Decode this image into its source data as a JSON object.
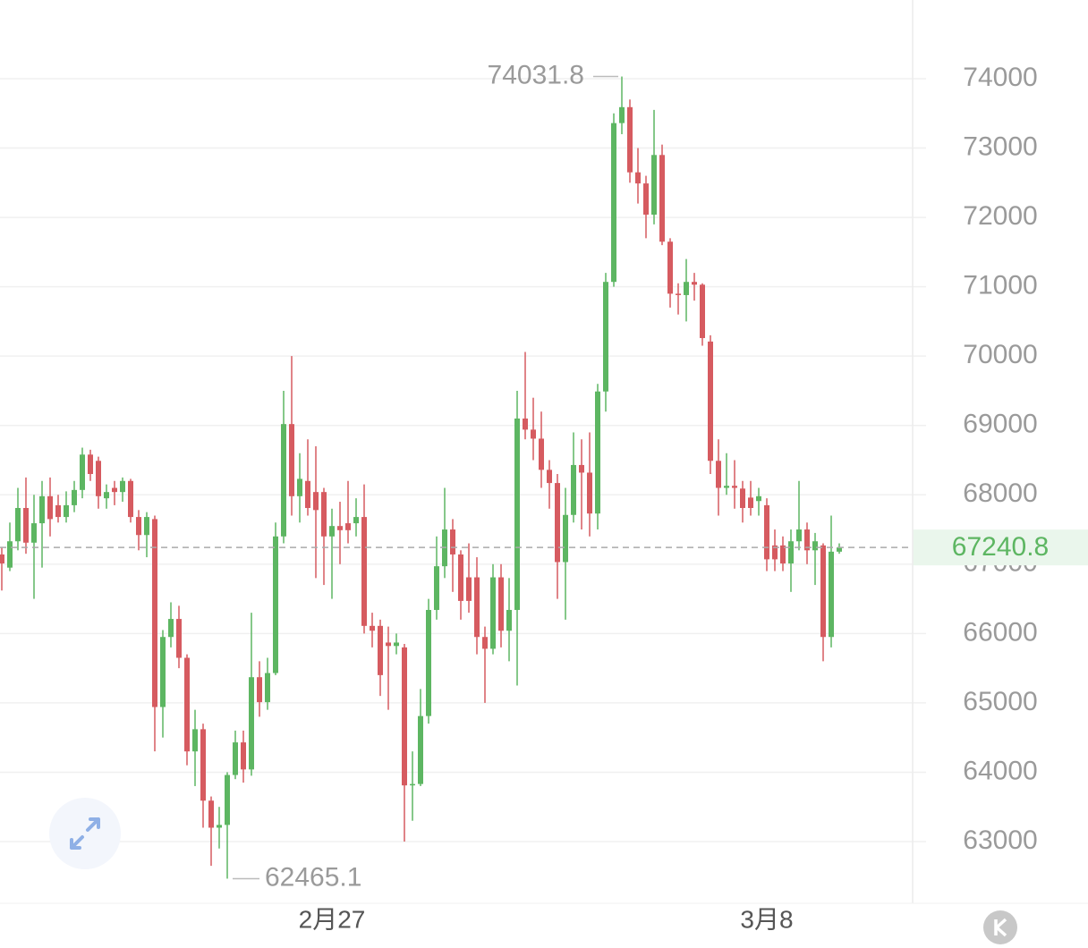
{
  "chart_data": {
    "type": "candlestick",
    "categories": [
      null,
      null,
      null,
      null,
      null,
      null,
      null,
      null,
      null,
      null,
      null,
      null,
      null,
      null,
      null,
      null,
      null,
      null,
      null,
      null,
      null,
      null,
      null,
      null,
      null,
      null,
      null,
      null,
      null,
      null,
      null,
      null,
      null,
      null,
      null,
      null,
      null,
      null,
      null,
      null,
      null,
      "2月27",
      null,
      null,
      null,
      null,
      null,
      null,
      null,
      null,
      null,
      null,
      null,
      null,
      null,
      null,
      null,
      null,
      null,
      null,
      null,
      null,
      null,
      null,
      null,
      null,
      null,
      null,
      null,
      null,
      null,
      null,
      null,
      null,
      null,
      null,
      null,
      null,
      null,
      null,
      null,
      null,
      null,
      null,
      null,
      null,
      null,
      null,
      null,
      null,
      null,
      null,
      null,
      null,
      null,
      "3月8",
      null,
      null,
      null,
      null,
      null,
      null,
      null,
      null,
      null
    ],
    "open": [
      67140,
      66950,
      67330,
      67810,
      67310,
      67590,
      67980,
      67850,
      67680,
      67850,
      68070,
      68580,
      68490,
      67950,
      68100,
      68040,
      68200,
      67680,
      67420,
      67650,
      64940,
      65950,
      66210,
      65650,
      64300,
      64620,
      63590,
      63200,
      63240,
      63960,
      64430,
      64040,
      65370,
      65010,
      65430,
      67400,
      69020,
      67980,
      68200,
      68040,
      68040,
      67400,
      67550,
      67590,
      67590,
      67680,
      66110,
      66110,
      65870,
      65820,
      65800,
      63810,
      63830,
      64810,
      66340,
      66970,
      67500,
      67140,
      66810,
      66810,
      65950,
      65780,
      66810,
      66040,
      66340,
      69100,
      68940,
      68810,
      68360,
      68170,
      67030,
      67710,
      68430,
      68320,
      67730,
      69490,
      71070,
      73360,
      73590,
      72650,
      72490,
      72040,
      72900,
      71650,
      70900,
      70880,
      71070,
      71030,
      70210,
      68490,
      68100,
      68130,
      68090,
      67960,
      67910,
      67850,
      67270,
      67270,
      67010,
      67330,
      67500,
      67200,
      67270,
      65950,
      67180
    ],
    "high": [
      67250,
      67600,
      68100,
      68250,
      68000,
      68200,
      68250,
      68000,
      68050,
      68200,
      68680,
      68650,
      68550,
      68150,
      68200,
      68250,
      68230,
      67780,
      67750,
      67700,
      66050,
      66450,
      66400,
      65700,
      64900,
      64700,
      63650,
      63500,
      64000,
      64600,
      64600,
      66300,
      65600,
      65650,
      67600,
      69500,
      70000,
      68600,
      68800,
      68700,
      68100,
      67800,
      67900,
      68200,
      67950,
      68150,
      66300,
      66200,
      66100,
      66000,
      65850,
      64300,
      65200,
      66500,
      67400,
      68100,
      67650,
      67200,
      67300,
      67100,
      66100,
      67000,
      67000,
      66800,
      69500,
      70060,
      69400,
      69200,
      68500,
      68300,
      68100,
      68900,
      68800,
      68900,
      69600,
      71200,
      73500,
      74031.8,
      73700,
      73000,
      72600,
      73550,
      73050,
      71700,
      71050,
      71400,
      71200,
      71050,
      70300,
      68800,
      68600,
      68500,
      68200,
      68200,
      68100,
      67950,
      67500,
      67400,
      67500,
      68200,
      67600,
      67450,
      67300,
      67700,
      67300
    ],
    "low": [
      66620,
      66900,
      67200,
      67150,
      66500,
      66950,
      67400,
      67600,
      67600,
      67750,
      67950,
      68200,
      67800,
      67800,
      67850,
      67900,
      67600,
      67200,
      67100,
      64300,
      64500,
      65800,
      65500,
      64100,
      63800,
      63200,
      62650,
      62900,
      62465.1,
      63900,
      63850,
      63950,
      64800,
      64900,
      65400,
      67300,
      67700,
      67600,
      67700,
      66800,
      66700,
      66500,
      67000,
      67300,
      67400,
      66000,
      65800,
      65100,
      64900,
      65700,
      63000,
      63300,
      63800,
      64700,
      66200,
      66800,
      66600,
      66200,
      66300,
      65700,
      65000,
      65700,
      65800,
      65600,
      65250,
      68800,
      68500,
      68100,
      67800,
      66500,
      66200,
      67600,
      67500,
      67400,
      67500,
      69200,
      71000,
      73200,
      72500,
      72200,
      71700,
      71900,
      71600,
      70700,
      70600,
      70500,
      70800,
      70150,
      68300,
      67700,
      68000,
      67800,
      67600,
      67700,
      67700,
      66900,
      66900,
      66900,
      66600,
      67200,
      67000,
      66700,
      65600,
      65800,
      67150
    ],
    "close": [
      67010,
      67330,
      67810,
      67310,
      67590,
      67980,
      67650,
      67680,
      67850,
      68070,
      68580,
      68300,
      67980,
      68040,
      68040,
      68200,
      67680,
      67420,
      67680,
      64940,
      65950,
      66210,
      65650,
      64300,
      64620,
      63590,
      63200,
      63240,
      63960,
      64430,
      64040,
      65370,
      65010,
      65430,
      67400,
      69020,
      67980,
      68230,
      67810,
      67780,
      67400,
      67550,
      67490,
      67490,
      67680,
      66110,
      66040,
      65400,
      65820,
      65870,
      63810,
      63830,
      64810,
      66340,
      66970,
      67500,
      67140,
      66470,
      66470,
      65950,
      65780,
      66810,
      66040,
      66340,
      69100,
      68940,
      68810,
      68360,
      68170,
      67030,
      67710,
      68430,
      68320,
      67730,
      69490,
      71070,
      73360,
      73590,
      72650,
      72490,
      72040,
      72900,
      71650,
      70900,
      70880,
      71070,
      71030,
      70260,
      68490,
      68100,
      68130,
      68100,
      67810,
      67810,
      67980,
      67070,
      67070,
      67010,
      67330,
      67500,
      67200,
      67330,
      65950,
      67180,
      67240.8
    ],
    "up_color": "#5db662",
    "down_color": "#d65b60",
    "ylim": [
      62110,
      75135
    ],
    "yticks": [
      63000,
      64000,
      65000,
      66000,
      67000,
      68000,
      69000,
      70000,
      71000,
      72000,
      73000,
      74000
    ],
    "grid": true
  }
}
